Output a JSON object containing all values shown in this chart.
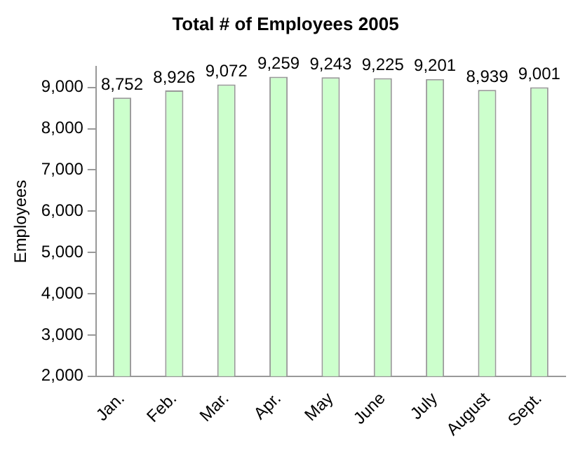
{
  "chart_data": {
    "type": "bar",
    "title": "Total # of Employees 2005",
    "ylabel": "Employees",
    "categories": [
      "Jan.",
      "Feb.",
      "Mar.",
      "Apr.",
      "May",
      "June",
      "July",
      "August",
      "Sept."
    ],
    "values": [
      8752,
      8926,
      9072,
      9259,
      9243,
      9225,
      9201,
      8939,
      9001
    ],
    "value_labels": [
      "8,752",
      "8,926",
      "9,072",
      "9,259",
      "9,243",
      "9,225",
      "9,201",
      "8,939",
      "9,001"
    ],
    "color": "#ccffcc",
    "ylim": [
      2000,
      9500
    ],
    "yticks": [
      {
        "value": 2000,
        "label": "2,000"
      },
      {
        "value": 3000,
        "label": "3,000"
      },
      {
        "value": 4000,
        "label": "4,000"
      },
      {
        "value": 5000,
        "label": "5,000"
      },
      {
        "value": 6000,
        "label": "6,000"
      },
      {
        "value": 7000,
        "label": "7,000"
      },
      {
        "value": 8000,
        "label": "8,000"
      },
      {
        "value": 9000,
        "label": "9,000"
      }
    ],
    "grid": false,
    "legend": false
  }
}
